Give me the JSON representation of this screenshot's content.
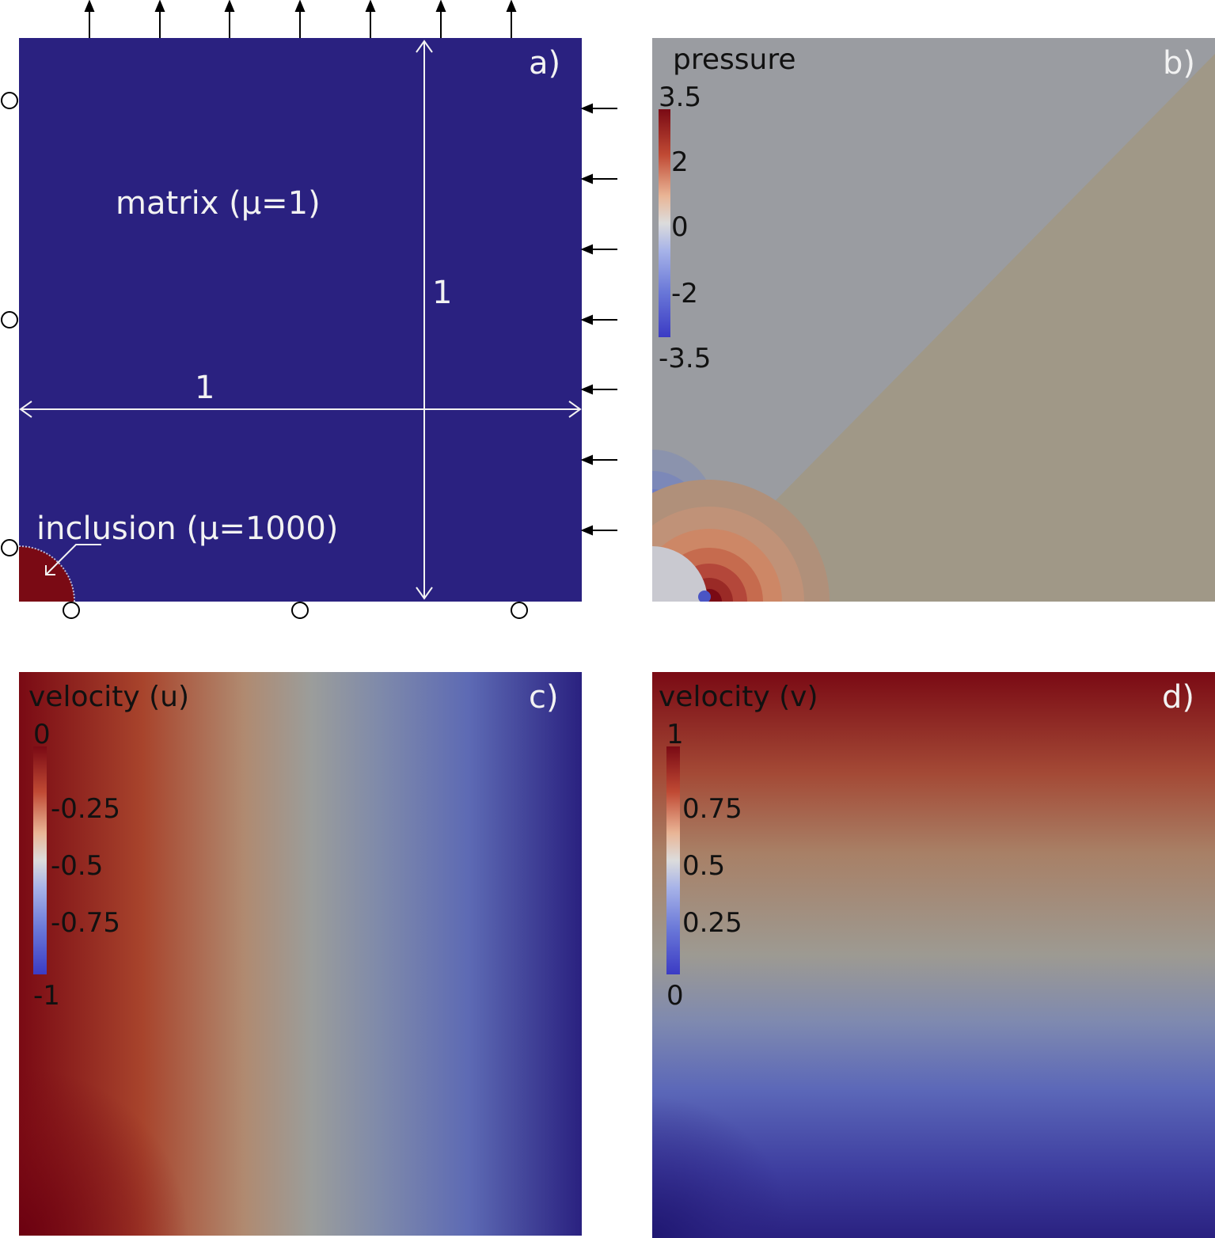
{
  "panel_a": {
    "label": "a)",
    "matrix_text": "matrix (μ=1)",
    "inclusion_text": "inclusion (μ=1000)",
    "dim_vertical": "1",
    "dim_horizontal": "1",
    "colors": {
      "matrix": "#2a2180",
      "inclusion": "#7a0a14"
    }
  },
  "panel_b": {
    "label": "b)",
    "colorbar_title": "pressure",
    "ticks": [
      "3.5",
      "2",
      "0",
      "-2",
      "-3.5"
    ],
    "colors": {
      "upper_region": "#9a9ca1",
      "lower_region": "#a09887",
      "max": "#7a0a14",
      "min": "#3b3bc4"
    }
  },
  "panel_c": {
    "label": "c)",
    "colorbar_title": "velocity (u)",
    "ticks": [
      "0",
      "-0.25",
      "-0.5",
      "-0.75",
      "-1"
    ]
  },
  "panel_d": {
    "label": "d)",
    "colorbar_title": "velocity (v)",
    "ticks": [
      "1",
      "0.75",
      "0.5",
      "0.25",
      "0"
    ]
  }
}
